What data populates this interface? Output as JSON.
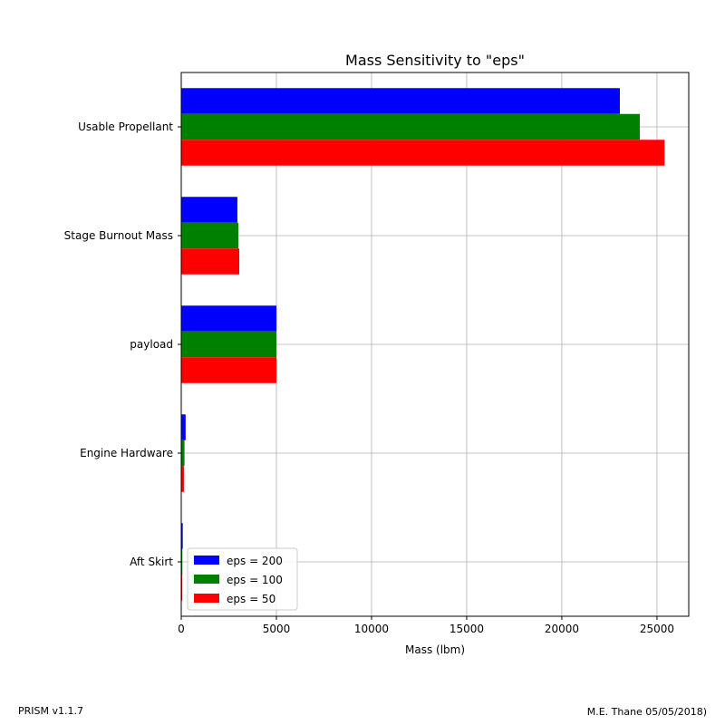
{
  "chart_data": {
    "type": "bar",
    "orientation": "horizontal",
    "title": "Mass Sensitivity to \"eps\"",
    "xlabel": "Mass (lbm)",
    "ylabel": "",
    "categories": [
      "Usable Propellant",
      "Stage Burnout Mass",
      "payload",
      "Engine Hardware",
      "Aft Skirt"
    ],
    "series": [
      {
        "name": "eps = 200",
        "color": "#0000ff",
        "values": [
          23050,
          2950,
          5000,
          230,
          80
        ]
      },
      {
        "name": "eps = 100",
        "color": "#008000",
        "values": [
          24100,
          3000,
          5000,
          170,
          60
        ]
      },
      {
        "name": "eps = 50",
        "color": "#ff0000",
        "values": [
          25400,
          3050,
          5000,
          140,
          50
        ]
      }
    ],
    "xlim": [
      0,
      26670
    ],
    "xticks": [
      "0",
      "5000",
      "10000",
      "15000",
      "20000",
      "25000"
    ],
    "grid": true,
    "legend_position": "lower-left"
  },
  "footer": {
    "left": "PRISM v1.1.7",
    "right": "M.E. Thane 05/05/2018)"
  }
}
